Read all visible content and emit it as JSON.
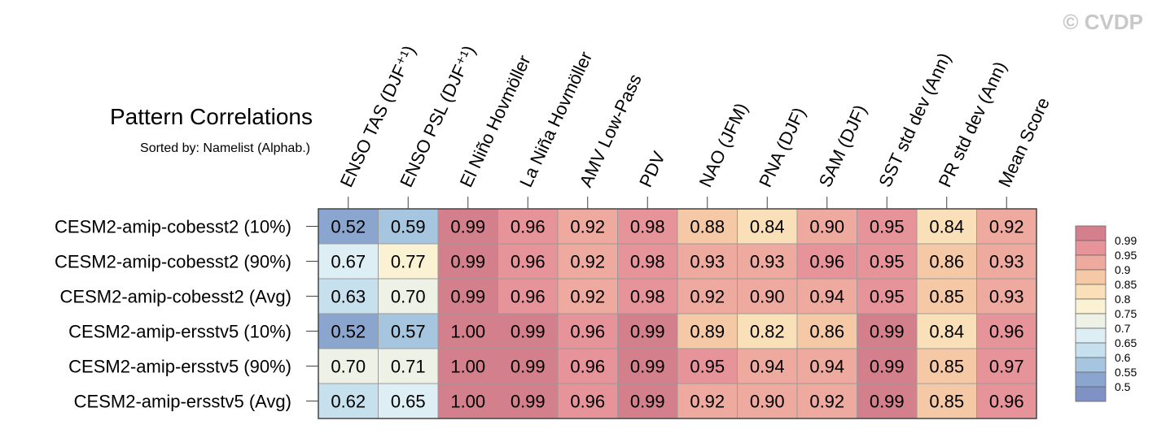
{
  "watermark": "© CVDP",
  "chart_data": {
    "type": "heatmap",
    "title": "Pattern Correlations",
    "subtitle": "Sorted by: Namelist (Alphab.)",
    "columns": [
      "ENSO TAS (DJF⁺¹)",
      "ENSO PSL (DJF⁺¹)",
      "El Niño Hovmöller",
      "La Niña Hovmöller",
      "AMV Low-Pass",
      "PDV",
      "NAO (JFM)",
      "PNA (DJF)",
      "SAM (DJF)",
      "SST std dev (Ann)",
      "PR std dev (Ann)",
      "Mean Score"
    ],
    "rows": [
      "CESM2-amip-cobesst2 (10%)",
      "CESM2-amip-cobesst2 (90%)",
      "CESM2-amip-cobesst2 (Avg)",
      "CESM2-amip-ersstv5 (10%)",
      "CESM2-amip-ersstv5 (90%)",
      "CESM2-amip-ersstv5 (Avg)"
    ],
    "values": [
      [
        "0.52",
        "0.59",
        "0.99",
        "0.96",
        "0.92",
        "0.98",
        "0.88",
        "0.84",
        "0.90",
        "0.95",
        "0.84",
        "0.92"
      ],
      [
        "0.67",
        "0.77",
        "0.99",
        "0.96",
        "0.92",
        "0.98",
        "0.93",
        "0.93",
        "0.96",
        "0.95",
        "0.86",
        "0.93"
      ],
      [
        "0.63",
        "0.70",
        "0.99",
        "0.96",
        "0.92",
        "0.98",
        "0.92",
        "0.90",
        "0.94",
        "0.95",
        "0.85",
        "0.93"
      ],
      [
        "0.52",
        "0.57",
        "1.00",
        "0.99",
        "0.96",
        "0.99",
        "0.89",
        "0.82",
        "0.86",
        "0.99",
        "0.84",
        "0.96"
      ],
      [
        "0.70",
        "0.71",
        "1.00",
        "0.99",
        "0.96",
        "0.99",
        "0.95",
        "0.94",
        "0.94",
        "0.99",
        "0.85",
        "0.97"
      ],
      [
        "0.62",
        "0.65",
        "1.00",
        "0.99",
        "0.96",
        "0.99",
        "0.92",
        "0.90",
        "0.92",
        "0.99",
        "0.85",
        "0.96"
      ]
    ],
    "legend": {
      "levels": [
        "0.99",
        "0.95",
        "0.9",
        "0.85",
        "0.8",
        "0.75",
        "0.7",
        "0.65",
        "0.6",
        "0.55",
        "0.5"
      ],
      "colors": [
        "#d4808c",
        "#e6939a",
        "#eeaa9e",
        "#f5c9a6",
        "#fae0b8",
        "#faf2d2",
        "#eef2e6",
        "#ddeef4",
        "#c6e0ee",
        "#a6c6df",
        "#8aa6cf",
        "#7e92c4"
      ]
    }
  }
}
